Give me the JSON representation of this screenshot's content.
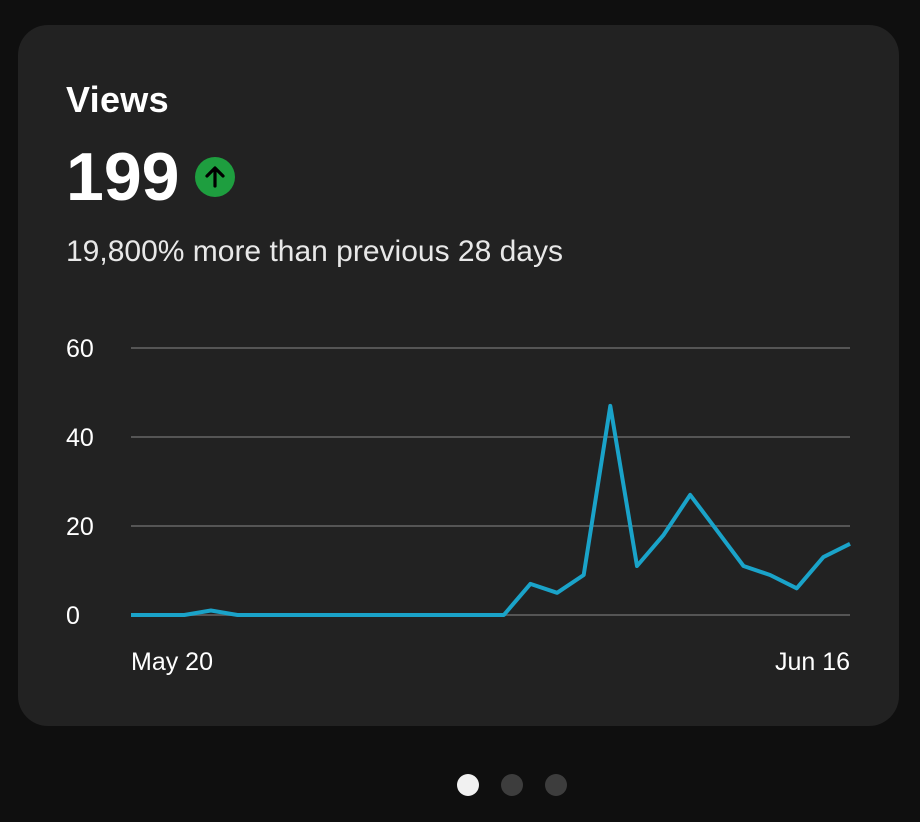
{
  "card": {
    "title": "Views",
    "value": "199",
    "trend_icon": "arrow-up-icon",
    "trend_color": "#1e9e3f",
    "comparison_text": "19,800% more than previous 28 days"
  },
  "chart_data": {
    "type": "line",
    "x_tick_labels": [
      "May 20",
      "Jun 16"
    ],
    "y_tick_labels": [
      "0",
      "20",
      "40",
      "60"
    ],
    "ylim": [
      0,
      60
    ],
    "grid": true,
    "line_color": "#1aa3c9",
    "series": [
      {
        "values": [
          0,
          0,
          0,
          1,
          0,
          0,
          0,
          0,
          0,
          0,
          0,
          0,
          0,
          0,
          0,
          7,
          5,
          9,
          47,
          11,
          18,
          27,
          19,
          11,
          9,
          6,
          13,
          16
        ]
      }
    ]
  },
  "pagination": {
    "pages": 3,
    "active_index": 0
  }
}
